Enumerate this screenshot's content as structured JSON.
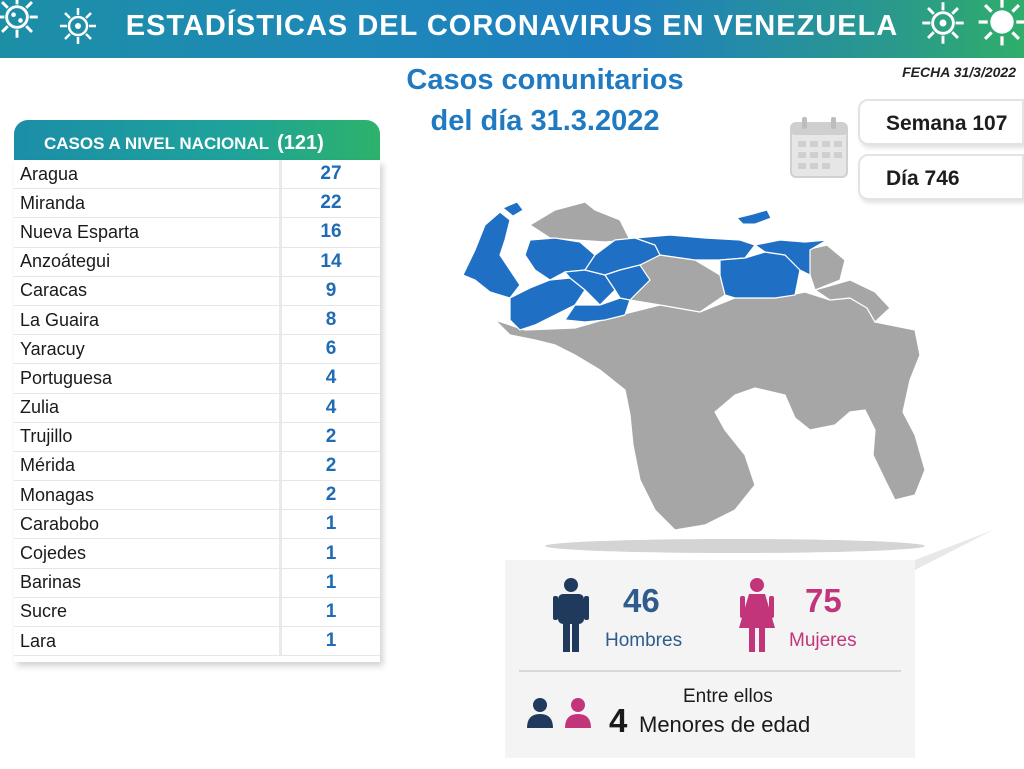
{
  "header": {
    "title": "ESTADÍSTICAS DEL CORONAVIRUS EN VENEZUELA",
    "accent_color": "#1f7fc0"
  },
  "subtitle": {
    "line1": "Casos comunitarios",
    "line2": "del día 31.3.2022"
  },
  "fecha": "FECHA 31/3/2022",
  "calendar": {
    "icon": "calendar-icon",
    "week": "Semana 107",
    "day": "Día 746"
  },
  "national": {
    "label": "CASOS A NIVEL NACIONAL",
    "total": "(121)",
    "rows": [
      {
        "name": "Aragua",
        "value": "27"
      },
      {
        "name": "Miranda",
        "value": "22"
      },
      {
        "name": "Nueva Esparta",
        "value": "16"
      },
      {
        "name": "Anzoátegui",
        "value": "14"
      },
      {
        "name": "Caracas",
        "value": "9"
      },
      {
        "name": "La Guaira",
        "value": "8"
      },
      {
        "name": "Yaracuy",
        "value": "6"
      },
      {
        "name": "Portuguesa",
        "value": "4"
      },
      {
        "name": "Zulia",
        "value": "4"
      },
      {
        "name": "Trujillo",
        "value": "2"
      },
      {
        "name": "Mérida",
        "value": "2"
      },
      {
        "name": "Monagas",
        "value": "2"
      },
      {
        "name": "Carabobo",
        "value": "1"
      },
      {
        "name": "Cojedes",
        "value": "1"
      },
      {
        "name": "Barinas",
        "value": "1"
      },
      {
        "name": "Sucre",
        "value": "1"
      },
      {
        "name": "Lara",
        "value": "1"
      }
    ]
  },
  "map": {
    "affected_color": "#1f6fc4",
    "unaffected_color": "#a6a6a6"
  },
  "gender": {
    "men_count": "46",
    "men_label": "Hombres",
    "men_color": "#2f5c8c",
    "women_count": "75",
    "women_label": "Mujeres",
    "women_color": "#c2357a",
    "minors_intro": "Entre ellos",
    "minors_count": "4",
    "minors_label": "Menores de edad"
  }
}
